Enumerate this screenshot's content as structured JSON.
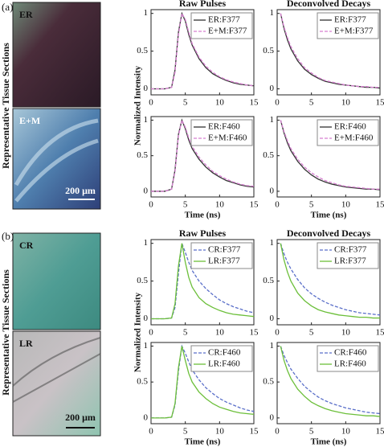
{
  "panels": [
    {
      "label": "(a)",
      "section_label": "Representative Tissue Sections",
      "ylabel": "Normalized Intensity",
      "images": [
        {
          "label": "ER"
        },
        {
          "label": "E+M",
          "scale": "200 μm"
        }
      ]
    },
    {
      "label": "(b)",
      "section_label": "Representative Tissue Sections",
      "ylabel": "Normalized Intensity",
      "images": [
        {
          "label": "CR"
        },
        {
          "label": "LR",
          "scale": "200 μm"
        }
      ]
    }
  ],
  "chart_data": [
    {
      "type": "line",
      "title": "Raw Pulses",
      "x": [
        0,
        1,
        2,
        3,
        3.5,
        4,
        4.5,
        5,
        5.5,
        6,
        7,
        8,
        9,
        10,
        11,
        12,
        13,
        14,
        15
      ],
      "xlim": [
        0,
        15
      ],
      "ylim": [
        -0.08,
        1.05
      ],
      "xticks": [
        0,
        5,
        10,
        15
      ],
      "yticks": [
        0,
        0.5,
        1
      ],
      "legend": "upper right",
      "series": [
        {
          "name": "ER:F377",
          "color": "#333333",
          "dashed": false,
          "values": [
            0,
            0,
            0,
            0.02,
            0.25,
            0.75,
            1,
            0.9,
            0.72,
            0.58,
            0.4,
            0.28,
            0.2,
            0.15,
            0.11,
            0.08,
            0.06,
            0.05,
            0.04
          ]
        },
        {
          "name": "E+M:F377",
          "color": "#d67fd0",
          "dashed": true,
          "values": [
            0,
            0,
            0,
            0.02,
            0.22,
            0.72,
            1,
            0.92,
            0.75,
            0.6,
            0.42,
            0.3,
            0.22,
            0.16,
            0.12,
            0.09,
            0.07,
            0.05,
            0.04
          ]
        }
      ]
    },
    {
      "type": "line",
      "title": "Deconvolved Decays",
      "x": [
        0.5,
        1,
        1.5,
        2,
        3,
        4,
        5,
        6,
        7,
        8,
        9,
        10,
        11,
        12,
        13,
        14,
        15
      ],
      "xlim": [
        0,
        15
      ],
      "ylim": [
        -0.08,
        1.05
      ],
      "xticks": [
        0,
        5,
        10,
        15
      ],
      "yticks": [
        0,
        0.5,
        1
      ],
      "legend": "upper right",
      "series": [
        {
          "name": "ER:F377",
          "color": "#333333",
          "dashed": false,
          "values": [
            1,
            0.8,
            0.65,
            0.53,
            0.37,
            0.26,
            0.19,
            0.14,
            0.1,
            0.08,
            0.06,
            0.05,
            0.04,
            0.03,
            0.02,
            0.02,
            0.01
          ]
        },
        {
          "name": "E+M:F377",
          "color": "#d67fd0",
          "dashed": true,
          "values": [
            1,
            0.82,
            0.68,
            0.56,
            0.4,
            0.28,
            0.21,
            0.15,
            0.11,
            0.09,
            0.07,
            0.05,
            0.04,
            0.03,
            0.03,
            0.02,
            0.02
          ]
        }
      ]
    },
    {
      "type": "line",
      "xlabel": "Time (ns)",
      "x": [
        0,
        1,
        2,
        3,
        3.5,
        4,
        4.5,
        5,
        5.5,
        6,
        7,
        8,
        9,
        10,
        11,
        12,
        13,
        14,
        15
      ],
      "xlim": [
        0,
        15
      ],
      "ylim": [
        -0.08,
        1.05
      ],
      "xticks": [
        0,
        5,
        10,
        15
      ],
      "yticks": [
        0,
        0.5,
        1
      ],
      "legend": "upper right",
      "series": [
        {
          "name": "ER:F460",
          "color": "#333333",
          "dashed": false,
          "values": [
            0,
            0,
            0,
            0.03,
            0.3,
            0.8,
            1,
            0.88,
            0.72,
            0.6,
            0.45,
            0.34,
            0.26,
            0.2,
            0.15,
            0.12,
            0.09,
            0.07,
            0.06
          ]
        },
        {
          "name": "E+M:F460",
          "color": "#d67fd0",
          "dashed": true,
          "values": [
            0,
            0,
            0,
            0.03,
            0.28,
            0.78,
            1,
            0.9,
            0.75,
            0.63,
            0.48,
            0.37,
            0.28,
            0.22,
            0.17,
            0.13,
            0.1,
            0.08,
            0.07
          ]
        }
      ]
    },
    {
      "type": "line",
      "xlabel": "Time (ns)",
      "x": [
        0.5,
        1,
        1.5,
        2,
        3,
        4,
        5,
        6,
        7,
        8,
        9,
        10,
        11,
        12,
        13,
        14,
        15
      ],
      "xlim": [
        0,
        15
      ],
      "ylim": [
        -0.08,
        1.05
      ],
      "xticks": [
        0,
        5,
        10,
        15
      ],
      "yticks": [
        0,
        0.5,
        1
      ],
      "legend": "upper right",
      "series": [
        {
          "name": "ER:F460",
          "color": "#333333",
          "dashed": false,
          "values": [
            1,
            0.82,
            0.68,
            0.57,
            0.42,
            0.31,
            0.23,
            0.17,
            0.13,
            0.1,
            0.08,
            0.06,
            0.05,
            0.04,
            0.03,
            0.03,
            0.02
          ]
        },
        {
          "name": "E+M:F460",
          "color": "#d67fd0",
          "dashed": true,
          "values": [
            1,
            0.84,
            0.71,
            0.6,
            0.45,
            0.34,
            0.26,
            0.2,
            0.15,
            0.12,
            0.09,
            0.07,
            0.06,
            0.05,
            0.04,
            0.03,
            0.03
          ]
        }
      ]
    },
    {
      "type": "line",
      "title": "Raw Pulses",
      "x": [
        0,
        1,
        2,
        3,
        3.5,
        4,
        4.5,
        5,
        5.5,
        6,
        7,
        8,
        9,
        10,
        11,
        12,
        13,
        14,
        15
      ],
      "xlim": [
        0,
        15
      ],
      "ylim": [
        -0.08,
        1.05
      ],
      "xticks": [
        0,
        5,
        10,
        15
      ],
      "yticks": [
        0,
        0.5,
        1
      ],
      "legend": "upper right",
      "series": [
        {
          "name": "CR:F377",
          "color": "#5a6fc9",
          "dashed": true,
          "values": [
            0,
            0,
            0,
            0.01,
            0.15,
            0.6,
            1,
            0.88,
            0.75,
            0.64,
            0.5,
            0.4,
            0.32,
            0.25,
            0.2,
            0.16,
            0.13,
            0.1,
            0.08
          ]
        },
        {
          "name": "LR:F377",
          "color": "#6cbf3a",
          "dashed": false,
          "values": [
            0,
            0,
            0,
            0.01,
            0.2,
            0.7,
            1,
            0.75,
            0.55,
            0.42,
            0.28,
            0.2,
            0.15,
            0.11,
            0.08,
            0.06,
            0.05,
            0.04,
            0.03
          ]
        }
      ]
    },
    {
      "type": "line",
      "title": "Deconvolved Decays",
      "x": [
        0.5,
        1,
        1.5,
        2,
        3,
        4,
        5,
        6,
        7,
        8,
        9,
        10,
        11,
        12,
        13,
        14,
        15
      ],
      "xlim": [
        0,
        15
      ],
      "ylim": [
        -0.08,
        1.05
      ],
      "xticks": [
        0,
        5,
        10,
        15
      ],
      "yticks": [
        0,
        0.5,
        1
      ],
      "legend": "upper right",
      "series": [
        {
          "name": "CR:F377",
          "color": "#5a6fc9",
          "dashed": true,
          "values": [
            1,
            0.86,
            0.75,
            0.66,
            0.52,
            0.41,
            0.33,
            0.27,
            0.22,
            0.18,
            0.15,
            0.12,
            0.1,
            0.08,
            0.07,
            0.06,
            0.05
          ]
        },
        {
          "name": "LR:F377",
          "color": "#6cbf3a",
          "dashed": false,
          "values": [
            1,
            0.78,
            0.62,
            0.5,
            0.34,
            0.24,
            0.17,
            0.12,
            0.09,
            0.07,
            0.05,
            0.04,
            0.03,
            0.02,
            0.02,
            0.01,
            0.01
          ]
        }
      ]
    },
    {
      "type": "line",
      "xlabel": "Time (ns)",
      "x": [
        0,
        1,
        2,
        3,
        3.5,
        4,
        4.5,
        5,
        5.5,
        6,
        7,
        8,
        9,
        10,
        11,
        12,
        13,
        14,
        15
      ],
      "xlim": [
        0,
        15
      ],
      "ylim": [
        -0.08,
        1.05
      ],
      "xticks": [
        0,
        5,
        10,
        15
      ],
      "yticks": [
        0,
        0.5,
        1
      ],
      "legend": "upper right",
      "series": [
        {
          "name": "CR:F460",
          "color": "#5a6fc9",
          "dashed": true,
          "values": [
            0,
            0,
            0,
            0.01,
            0.18,
            0.65,
            1,
            0.9,
            0.78,
            0.67,
            0.53,
            0.42,
            0.34,
            0.27,
            0.22,
            0.18,
            0.14,
            0.11,
            0.09
          ]
        },
        {
          "name": "LR:F460",
          "color": "#6cbf3a",
          "dashed": false,
          "values": [
            0,
            0,
            0,
            0.01,
            0.2,
            0.7,
            1,
            0.8,
            0.62,
            0.5,
            0.36,
            0.27,
            0.2,
            0.15,
            0.12,
            0.09,
            0.07,
            0.06,
            0.05
          ]
        }
      ]
    },
    {
      "type": "line",
      "xlabel": "Time (ns)",
      "x": [
        0.5,
        1,
        1.5,
        2,
        3,
        4,
        5,
        6,
        7,
        8,
        9,
        10,
        11,
        12,
        13,
        14,
        15
      ],
      "xlim": [
        0,
        15
      ],
      "ylim": [
        -0.08,
        1.05
      ],
      "xticks": [
        0,
        5,
        10,
        15
      ],
      "yticks": [
        0,
        0.5,
        1
      ],
      "legend": "upper right",
      "series": [
        {
          "name": "CR:F460",
          "color": "#5a6fc9",
          "dashed": true,
          "values": [
            1,
            0.87,
            0.77,
            0.68,
            0.55,
            0.44,
            0.36,
            0.29,
            0.24,
            0.2,
            0.17,
            0.14,
            0.12,
            0.1,
            0.08,
            0.07,
            0.06
          ]
        },
        {
          "name": "LR:F460",
          "color": "#6cbf3a",
          "dashed": false,
          "values": [
            1,
            0.8,
            0.66,
            0.55,
            0.4,
            0.3,
            0.22,
            0.17,
            0.13,
            0.1,
            0.08,
            0.06,
            0.05,
            0.04,
            0.03,
            0.03,
            0.02
          ]
        }
      ]
    }
  ]
}
